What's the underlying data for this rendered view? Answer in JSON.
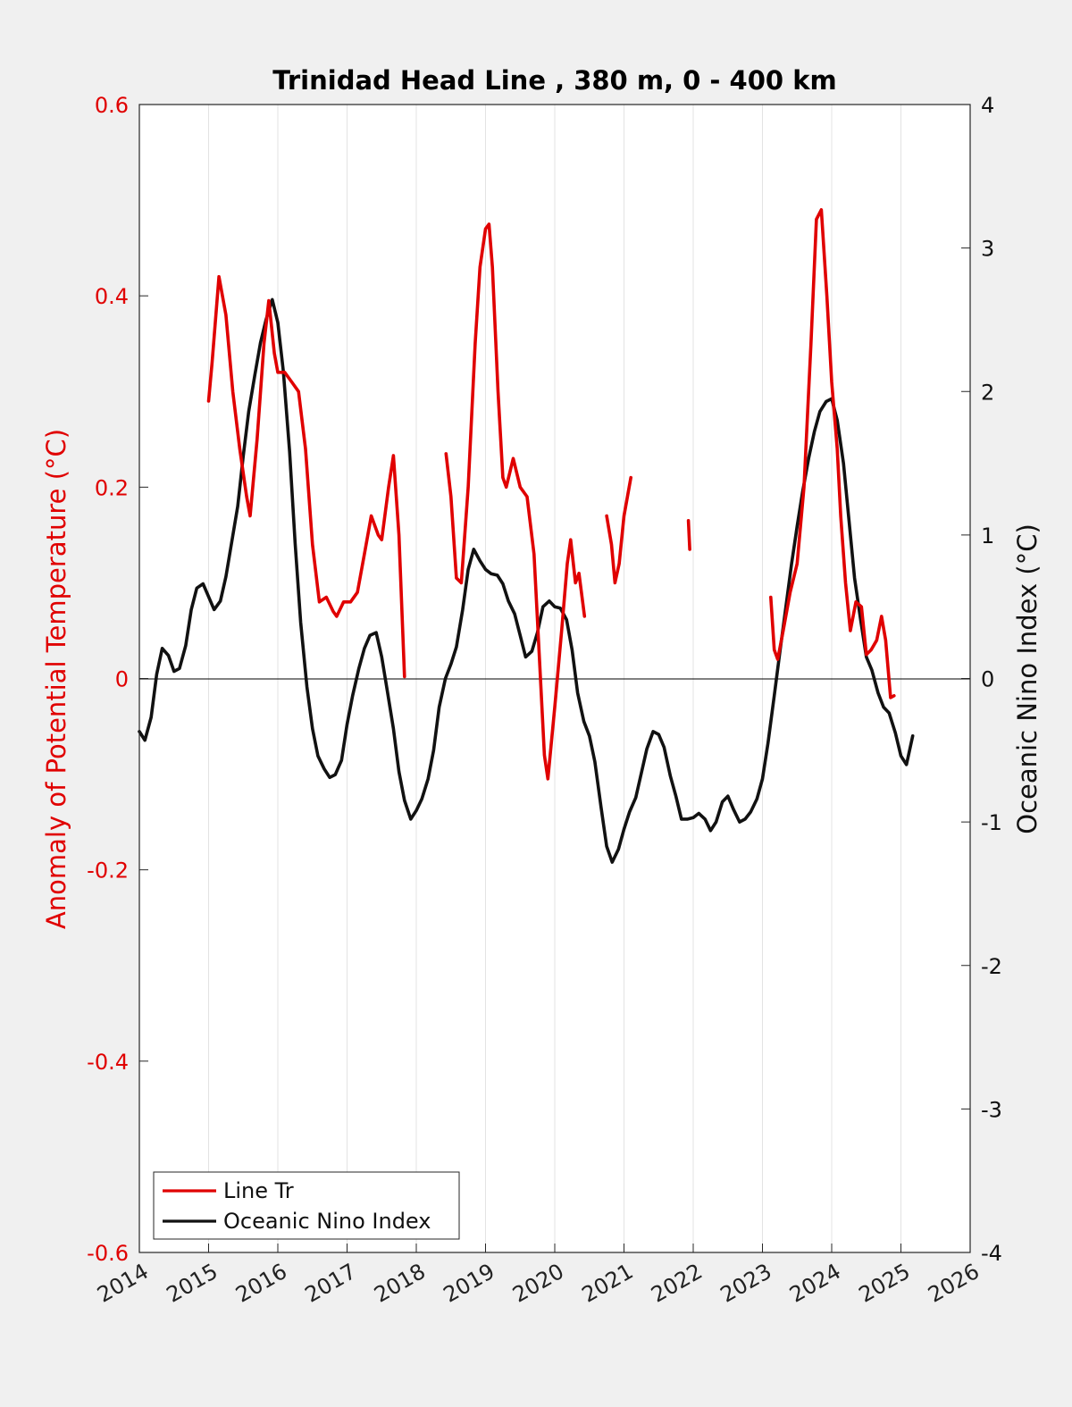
{
  "chart_data": {
    "type": "line",
    "title": "Trinidad Head Line , 380 m, 0 - 400 km",
    "ylabel_left": "Anomaly of Potential Temperature (°C)",
    "ylabel_right": "Oceanic Nino Index (°C)",
    "xlim": [
      2014,
      2026
    ],
    "ylim_left": [
      -0.6,
      0.6
    ],
    "ylim_right": [
      -4,
      4
    ],
    "x_ticks": [
      "2014",
      "2015",
      "2016",
      "2017",
      "2018",
      "2019",
      "2020",
      "2021",
      "2022",
      "2023",
      "2024",
      "2025",
      "2026"
    ],
    "y_left_ticks": [
      "-0.6",
      "-0.4",
      "-0.2",
      "0",
      "0.2",
      "0.4",
      "0.6"
    ],
    "y_right_ticks": [
      "-4",
      "-3",
      "-2",
      "-1",
      "0",
      "1",
      "2",
      "3",
      "4"
    ],
    "grid": "vertical",
    "legend_position": "bottom-left",
    "colors": {
      "line_tr": "#e00000",
      "oni": "#111111"
    },
    "series": [
      {
        "name": "Line Tr",
        "axis": "left",
        "color": "#e00000",
        "segments": [
          [
            [
              2015.0,
              0.29
            ],
            [
              2015.05,
              0.33
            ],
            [
              2015.15,
              0.42
            ],
            [
              2015.25,
              0.38
            ],
            [
              2015.35,
              0.3
            ],
            [
              2015.45,
              0.24
            ],
            [
              2015.55,
              0.19
            ],
            [
              2015.6,
              0.17
            ],
            [
              2015.7,
              0.25
            ],
            [
              2015.8,
              0.35
            ],
            [
              2015.87,
              0.395
            ],
            [
              2015.95,
              0.34
            ],
            [
              2016.0,
              0.32
            ],
            [
              2016.1,
              0.32
            ],
            [
              2016.2,
              0.31
            ],
            [
              2016.3,
              0.3
            ],
            [
              2016.4,
              0.24
            ],
            [
              2016.5,
              0.14
            ],
            [
              2016.6,
              0.08
            ],
            [
              2016.7,
              0.085
            ],
            [
              2016.8,
              0.07
            ],
            [
              2016.85,
              0.065
            ],
            [
              2016.95,
              0.08
            ],
            [
              2017.05,
              0.08
            ],
            [
              2017.15,
              0.09
            ],
            [
              2017.25,
              0.13
            ],
            [
              2017.35,
              0.17
            ],
            [
              2017.45,
              0.15
            ],
            [
              2017.5,
              0.145
            ],
            [
              2017.6,
              0.2
            ],
            [
              2017.67,
              0.233
            ],
            [
              2017.75,
              0.15
            ],
            [
              2017.83,
              0.002
            ]
          ],
          [
            [
              2018.43,
              0.235
            ],
            [
              2018.5,
              0.19
            ],
            [
              2018.58,
              0.105
            ],
            [
              2018.65,
              0.1
            ],
            [
              2018.75,
              0.2
            ],
            [
              2018.85,
              0.35
            ],
            [
              2018.92,
              0.43
            ],
            [
              2019.0,
              0.47
            ],
            [
              2019.05,
              0.475
            ],
            [
              2019.1,
              0.43
            ],
            [
              2019.18,
              0.3
            ],
            [
              2019.25,
              0.21
            ],
            [
              2019.3,
              0.2
            ],
            [
              2019.4,
              0.23
            ],
            [
              2019.5,
              0.2
            ],
            [
              2019.6,
              0.19
            ],
            [
              2019.7,
              0.13
            ],
            [
              2019.78,
              0.02
            ],
            [
              2019.85,
              -0.08
            ],
            [
              2019.9,
              -0.105
            ],
            [
              2020.0,
              -0.03
            ],
            [
              2020.1,
              0.05
            ],
            [
              2020.18,
              0.12
            ],
            [
              2020.23,
              0.145
            ],
            [
              2020.3,
              0.1
            ],
            [
              2020.35,
              0.11
            ],
            [
              2020.43,
              0.065
            ]
          ],
          [
            [
              2020.75,
              0.17
            ],
            [
              2020.82,
              0.14
            ],
            [
              2020.87,
              0.1
            ],
            [
              2020.93,
              0.12
            ],
            [
              2021.0,
              0.17
            ],
            [
              2021.1,
              0.21
            ]
          ],
          [
            [
              2021.93,
              0.165
            ],
            [
              2021.95,
              0.135
            ]
          ],
          [
            [
              2023.12,
              0.085
            ],
            [
              2023.17,
              0.03
            ],
            [
              2023.22,
              0.02
            ],
            [
              2023.3,
              0.05
            ],
            [
              2023.4,
              0.09
            ],
            [
              2023.5,
              0.12
            ],
            [
              2023.6,
              0.2
            ],
            [
              2023.7,
              0.35
            ],
            [
              2023.78,
              0.48
            ],
            [
              2023.85,
              0.49
            ],
            [
              2023.93,
              0.4
            ],
            [
              2024.0,
              0.31
            ],
            [
              2024.08,
              0.24
            ],
            [
              2024.13,
              0.17
            ],
            [
              2024.2,
              0.1
            ],
            [
              2024.27,
              0.05
            ],
            [
              2024.35,
              0.08
            ],
            [
              2024.43,
              0.075
            ],
            [
              2024.5,
              0.025
            ],
            [
              2024.57,
              0.03
            ],
            [
              2024.65,
              0.04
            ],
            [
              2024.72,
              0.065
            ],
            [
              2024.78,
              0.04
            ],
            [
              2024.85,
              -0.02
            ],
            [
              2024.9,
              -0.018
            ]
          ]
        ]
      },
      {
        "name": "Oceanic Nino Index",
        "axis": "right",
        "color": "#111111",
        "segments": [
          [
            [
              2014.0,
              -0.37
            ],
            [
              2014.08,
              -0.43
            ],
            [
              2014.17,
              -0.27
            ],
            [
              2014.25,
              0.03
            ],
            [
              2014.33,
              0.21
            ],
            [
              2014.42,
              0.16
            ],
            [
              2014.5,
              0.05
            ],
            [
              2014.58,
              0.07
            ],
            [
              2014.67,
              0.23
            ],
            [
              2014.75,
              0.48
            ],
            [
              2014.83,
              0.63
            ],
            [
              2014.92,
              0.66
            ],
            [
              2015.0,
              0.57
            ],
            [
              2015.08,
              0.48
            ],
            [
              2015.17,
              0.54
            ],
            [
              2015.25,
              0.71
            ],
            [
              2015.33,
              0.94
            ],
            [
              2015.42,
              1.2
            ],
            [
              2015.5,
              1.55
            ],
            [
              2015.58,
              1.86
            ],
            [
              2015.67,
              2.12
            ],
            [
              2015.75,
              2.34
            ],
            [
              2015.83,
              2.5
            ],
            [
              2015.92,
              2.64
            ],
            [
              2016.0,
              2.48
            ],
            [
              2016.08,
              2.14
            ],
            [
              2016.17,
              1.58
            ],
            [
              2016.25,
              0.94
            ],
            [
              2016.33,
              0.39
            ],
            [
              2016.42,
              -0.06
            ],
            [
              2016.5,
              -0.35
            ],
            [
              2016.58,
              -0.54
            ],
            [
              2016.67,
              -0.63
            ],
            [
              2016.75,
              -0.69
            ],
            [
              2016.83,
              -0.67
            ],
            [
              2016.92,
              -0.57
            ],
            [
              2017.0,
              -0.32
            ],
            [
              2017.08,
              -0.12
            ],
            [
              2017.17,
              0.07
            ],
            [
              2017.25,
              0.21
            ],
            [
              2017.33,
              0.3
            ],
            [
              2017.42,
              0.32
            ],
            [
              2017.5,
              0.15
            ],
            [
              2017.58,
              -0.08
            ],
            [
              2017.67,
              -0.35
            ],
            [
              2017.75,
              -0.65
            ],
            [
              2017.83,
              -0.85
            ],
            [
              2017.92,
              -0.98
            ],
            [
              2018.0,
              -0.92
            ],
            [
              2018.08,
              -0.84
            ],
            [
              2018.17,
              -0.7
            ],
            [
              2018.25,
              -0.5
            ],
            [
              2018.33,
              -0.2
            ],
            [
              2018.42,
              0.0
            ],
            [
              2018.5,
              0.1
            ],
            [
              2018.58,
              0.22
            ],
            [
              2018.67,
              0.48
            ],
            [
              2018.75,
              0.76
            ],
            [
              2018.83,
              0.9
            ],
            [
              2018.92,
              0.82
            ],
            [
              2019.0,
              0.76
            ],
            [
              2019.08,
              0.73
            ],
            [
              2019.17,
              0.72
            ],
            [
              2019.25,
              0.66
            ],
            [
              2019.33,
              0.54
            ],
            [
              2019.42,
              0.45
            ],
            [
              2019.5,
              0.3
            ],
            [
              2019.58,
              0.15
            ],
            [
              2019.67,
              0.19
            ],
            [
              2019.75,
              0.32
            ],
            [
              2019.83,
              0.5
            ],
            [
              2019.92,
              0.54
            ],
            [
              2020.0,
              0.5
            ],
            [
              2020.08,
              0.49
            ],
            [
              2020.17,
              0.41
            ],
            [
              2020.25,
              0.2
            ],
            [
              2020.33,
              -0.1
            ],
            [
              2020.42,
              -0.3
            ],
            [
              2020.5,
              -0.4
            ],
            [
              2020.58,
              -0.58
            ],
            [
              2020.67,
              -0.9
            ],
            [
              2020.75,
              -1.17
            ],
            [
              2020.83,
              -1.28
            ],
            [
              2020.92,
              -1.19
            ],
            [
              2021.0,
              -1.05
            ],
            [
              2021.08,
              -0.93
            ],
            [
              2021.17,
              -0.83
            ],
            [
              2021.25,
              -0.66
            ],
            [
              2021.33,
              -0.49
            ],
            [
              2021.42,
              -0.37
            ],
            [
              2021.5,
              -0.39
            ],
            [
              2021.58,
              -0.48
            ],
            [
              2021.67,
              -0.68
            ],
            [
              2021.75,
              -0.82
            ],
            [
              2021.83,
              -0.98
            ],
            [
              2021.92,
              -0.98
            ],
            [
              2022.0,
              -0.97
            ],
            [
              2022.08,
              -0.94
            ],
            [
              2022.17,
              -0.98
            ],
            [
              2022.25,
              -1.06
            ],
            [
              2022.33,
              -1.0
            ],
            [
              2022.42,
              -0.86
            ],
            [
              2022.5,
              -0.82
            ],
            [
              2022.58,
              -0.91
            ],
            [
              2022.67,
              -1.0
            ],
            [
              2022.75,
              -0.98
            ],
            [
              2022.83,
              -0.93
            ],
            [
              2022.92,
              -0.84
            ],
            [
              2023.0,
              -0.7
            ],
            [
              2023.08,
              -0.45
            ],
            [
              2023.17,
              -0.12
            ],
            [
              2023.25,
              0.18
            ],
            [
              2023.33,
              0.47
            ],
            [
              2023.42,
              0.8
            ],
            [
              2023.5,
              1.06
            ],
            [
              2023.58,
              1.3
            ],
            [
              2023.67,
              1.54
            ],
            [
              2023.75,
              1.72
            ],
            [
              2023.83,
              1.86
            ],
            [
              2023.92,
              1.93
            ],
            [
              2024.0,
              1.95
            ],
            [
              2024.08,
              1.8
            ],
            [
              2024.17,
              1.5
            ],
            [
              2024.25,
              1.1
            ],
            [
              2024.33,
              0.7
            ],
            [
              2024.42,
              0.4
            ],
            [
              2024.5,
              0.15
            ],
            [
              2024.58,
              0.06
            ],
            [
              2024.67,
              -0.1
            ],
            [
              2024.75,
              -0.2
            ],
            [
              2024.83,
              -0.24
            ],
            [
              2024.92,
              -0.38
            ],
            [
              2025.0,
              -0.54
            ],
            [
              2025.08,
              -0.6
            ],
            [
              2025.17,
              -0.4
            ]
          ]
        ]
      }
    ]
  }
}
